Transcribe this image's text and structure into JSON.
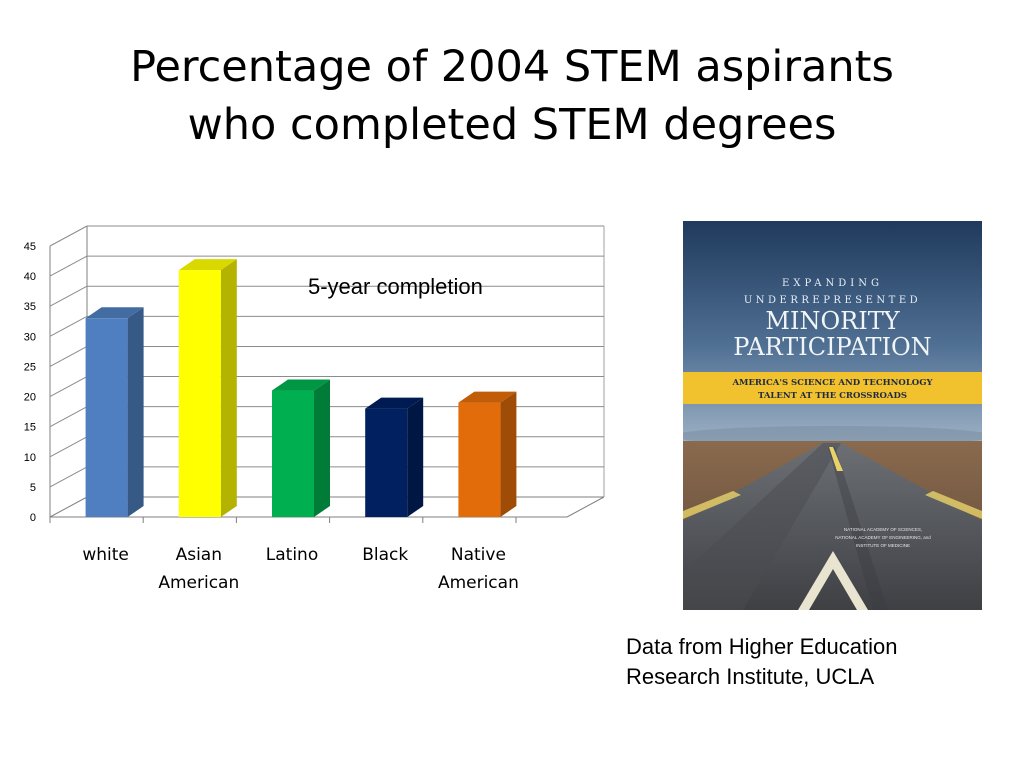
{
  "title": {
    "line1": "Percentage of 2004 STEM aspirants",
    "line2": "who completed STEM degrees"
  },
  "chart_data": {
    "type": "bar",
    "title": "",
    "xlabel": "",
    "ylabel": "",
    "ylim": [
      0,
      45
    ],
    "yticks": [
      0,
      5,
      10,
      15,
      20,
      25,
      30,
      35,
      40,
      45
    ],
    "grid": true,
    "style": "3d",
    "annotation": "5-year completion",
    "categories": [
      [
        "white"
      ],
      [
        "Asian",
        "American"
      ],
      [
        "Latino"
      ],
      [
        "Black"
      ],
      [
        "Native",
        "American"
      ]
    ],
    "values": [
      33,
      41,
      21,
      18,
      19
    ],
    "colors": [
      "#4f7fc0",
      "#ffff00",
      "#00b050",
      "#002060",
      "#e36c0a"
    ]
  },
  "book": {
    "line1": "EXPANDING",
    "line2": "UNDERREPRESENTED",
    "line3": "MINORITY",
    "line4": "PARTICIPATION",
    "band1": "AMERICA'S SCIENCE AND TECHNOLOGY",
    "band2": "TALENT AT THE CROSSROADS",
    "publisher1": "NATIONAL ACADEMY OF SCIENCES,",
    "publisher2": "NATIONAL ACADEMY OF ENGINEERING, and",
    "publisher3": "INSTITUTE OF MEDICINE"
  },
  "source": {
    "line1": "Data from Higher Education",
    "line2": "Research Institute, UCLA"
  }
}
